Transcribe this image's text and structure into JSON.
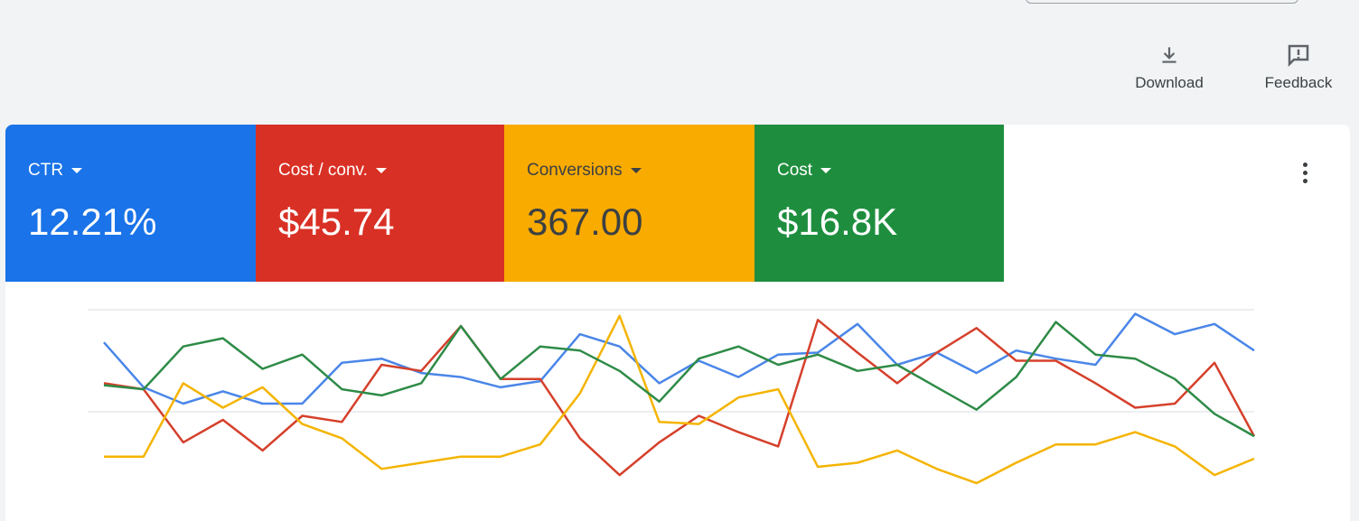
{
  "toolbar": {
    "download": "Download",
    "feedback": "Feedback"
  },
  "metrics": [
    {
      "label": "CTR",
      "value": "12.21%",
      "color": "#1a73e8",
      "text_color": "#ffffff"
    },
    {
      "label": "Cost / conv.",
      "value": "$45.74",
      "color": "#d93025",
      "text_color": "#ffffff"
    },
    {
      "label": "Conversions",
      "value": "367.00",
      "color": "#f9ab00",
      "text_color": "#3c4043"
    },
    {
      "label": "Cost",
      "value": "$16.8K",
      "color": "#1e8e3e",
      "text_color": "#ffffff"
    }
  ],
  "chart_data": {
    "type": "line",
    "ylim": [
      0,
      100
    ],
    "yticks": [
      50,
      100
    ],
    "grid": true,
    "series": [
      {
        "name": "CTR",
        "color": "#4a86e8",
        "values": [
          84,
          62,
          54,
          60,
          54,
          54,
          74,
          76,
          69,
          67,
          62,
          65,
          88,
          82,
          64,
          75,
          67,
          78,
          79,
          93,
          73,
          79,
          69,
          80,
          76,
          73,
          98,
          88,
          93,
          80
        ]
      },
      {
        "name": "Cost / conv.",
        "color": "#d5402b",
        "values": [
          64,
          61,
          35,
          46,
          31,
          48,
          45,
          73,
          70,
          92,
          66,
          66,
          37,
          19,
          35,
          48,
          40,
          33,
          95,
          79,
          64,
          79,
          91,
          75,
          75,
          64,
          52,
          54,
          74,
          38
        ]
      },
      {
        "name": "Conversions",
        "color": "#f4b400",
        "values": [
          28,
          28,
          64,
          52,
          62,
          44,
          37,
          22,
          25,
          28,
          28,
          34,
          59,
          97,
          45,
          44,
          57,
          61,
          23,
          25,
          31,
          22,
          15,
          25,
          34,
          34,
          40,
          33,
          19,
          27
        ]
      },
      {
        "name": "Cost",
        "color": "#2e8b47",
        "values": [
          63,
          61,
          82,
          86,
          71,
          78,
          61,
          58,
          64,
          92,
          66,
          82,
          80,
          70,
          55,
          76,
          82,
          73,
          78,
          70,
          73,
          62,
          51,
          67,
          94,
          78,
          76,
          66,
          49,
          38
        ]
      }
    ]
  }
}
